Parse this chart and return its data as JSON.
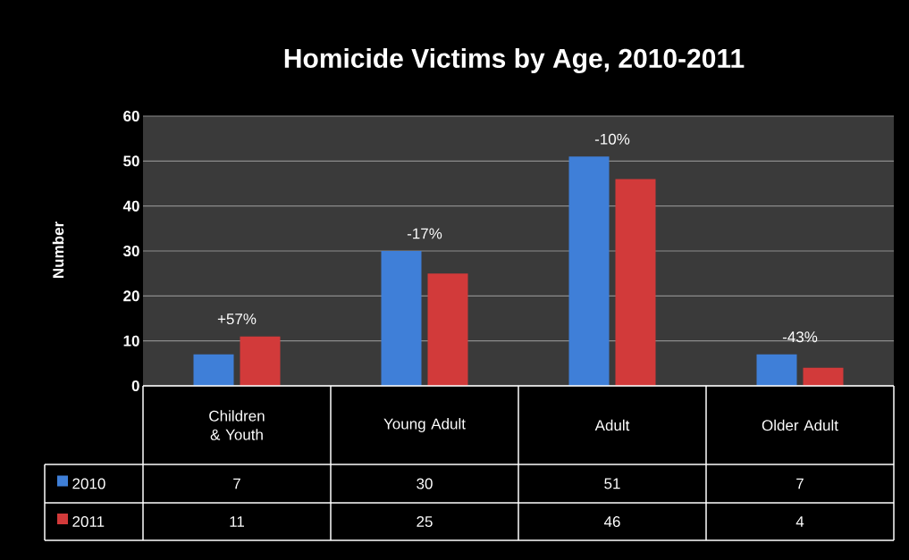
{
  "chart_data": {
    "type": "bar",
    "title": "Homicide Victims by Age, 2010-2011",
    "ylabel": "Number",
    "categories": [
      "Children & Youth",
      "Young Adult",
      "Adult",
      "Older Adult"
    ],
    "series": [
      {
        "name": "2010",
        "color": "#3f7fd8",
        "values": [
          7,
          30,
          51,
          7
        ]
      },
      {
        "name": "2011",
        "color": "#d23a3a",
        "values": [
          11,
          25,
          46,
          4
        ]
      }
    ],
    "ylim": [
      0,
      60
    ],
    "yticks": [
      0,
      10,
      20,
      30,
      40,
      50,
      60
    ],
    "grid": "y",
    "legend": "bottom",
    "data_labels": true,
    "annotations": [
      "+57%",
      "-17%",
      "-10%",
      "-43%"
    ]
  }
}
